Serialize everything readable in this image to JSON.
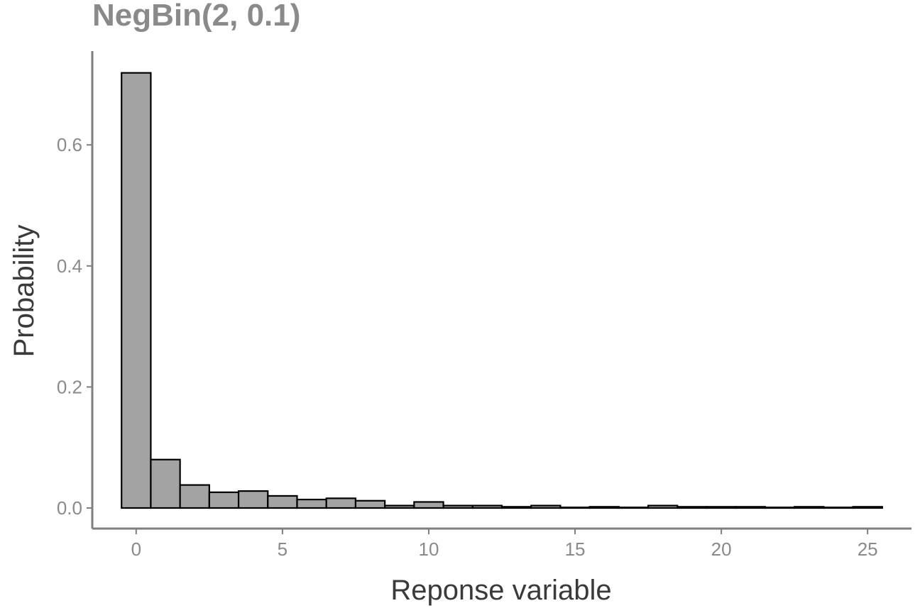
{
  "chart_data": {
    "type": "bar",
    "title": "NegBin(2, 0.1)",
    "xlabel": "Reponse variable",
    "ylabel": "Probability",
    "x": [
      0,
      1,
      2,
      3,
      4,
      5,
      6,
      7,
      8,
      9,
      10,
      11,
      12,
      13,
      14,
      15,
      16,
      17,
      18,
      19,
      20,
      21,
      22,
      23,
      24,
      25
    ],
    "values": [
      0.719,
      0.08,
      0.038,
      0.026,
      0.028,
      0.02,
      0.014,
      0.016,
      0.012,
      0.004,
      0.01,
      0.004,
      0.004,
      0.002,
      0.004,
      0.001,
      0.002,
      0.001,
      0.004,
      0.002,
      0.002,
      0.002,
      0.001,
      0.002,
      0.001,
      0.002
    ],
    "xlim": [
      -1.5,
      26.5
    ],
    "ylim": [
      -0.034,
      0.755
    ],
    "xticks": [
      0,
      5,
      10,
      15,
      20,
      25
    ],
    "xtick_labels": [
      "0",
      "5",
      "10",
      "15",
      "20",
      "25"
    ],
    "yticks": [
      0,
      0.2,
      0.4,
      0.6
    ],
    "ytick_labels": [
      "0.0",
      "0.2",
      "0.4",
      "0.6"
    ],
    "grid": false,
    "colors": {
      "bar_fill": "#a3a3a3",
      "bar_stroke": "#000000",
      "axis": "#7f7f7f"
    }
  }
}
